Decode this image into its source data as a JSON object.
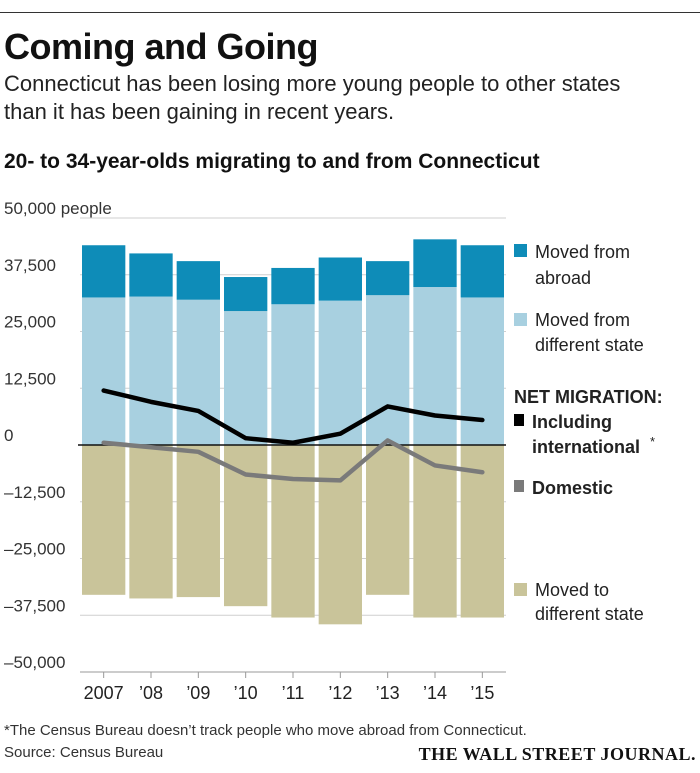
{
  "header": {
    "title": "Coming and Going",
    "subtitle_line1": "Connecticut has been losing more young people to other states",
    "subtitle_line2": "than it has been gaining in recent years."
  },
  "chart_data": {
    "type": "bar",
    "title": "20- to 34-year-olds migrating to and from Connecticut",
    "ylabel": "people",
    "ylim": [
      -50000,
      50000
    ],
    "y_ticks": [
      50000,
      37500,
      25000,
      12500,
      0,
      -12500,
      -25000,
      -37500,
      -50000
    ],
    "y_tick_labels": [
      "50,000 people",
      "37,500",
      "25,000",
      "12,500",
      "0",
      "–12,500",
      "–25,000",
      "–37,500",
      "–50,000"
    ],
    "categories": [
      "2007",
      "’08",
      "’09",
      "’10",
      "’11",
      "’12",
      "’13",
      "’14",
      "’15"
    ],
    "stacked_series": [
      {
        "name": "Moved from different state",
        "color": "#a8d0e0",
        "values": [
          32500,
          32700,
          32000,
          29500,
          31000,
          31800,
          33000,
          34800,
          32500
        ]
      },
      {
        "name": "Moved from abroad",
        "color": "#0e8cb8",
        "values": [
          11500,
          9500,
          8500,
          7500,
          8000,
          9500,
          7500,
          10500,
          11500
        ]
      }
    ],
    "negative_series": {
      "name": "Moved to different state",
      "color": "#c9c49a",
      "values": [
        -33000,
        -33800,
        -33500,
        -35500,
        -38000,
        -39500,
        -33000,
        -38000,
        -38000
      ]
    },
    "line_series": [
      {
        "name": "Including international",
        "color": "#000000",
        "values": [
          12000,
          9500,
          7500,
          1500,
          500,
          2500,
          8500,
          6500,
          5500
        ]
      },
      {
        "name": "Domestic",
        "color": "#7a7a7a",
        "values": [
          500,
          -500,
          -1500,
          -6500,
          -7500,
          -7800,
          1000,
          -4500,
          -6000
        ]
      }
    ],
    "legend": {
      "abroad_line1": "Moved from",
      "abroad_line2": "abroad",
      "state_line1": "Moved from",
      "state_line2": "different state",
      "net_heading": "NET MIGRATION:",
      "including_line1": "Including",
      "including_line2": "international",
      "asterisk": "*",
      "domestic": "Domestic",
      "to_state_line1": "Moved to",
      "to_state_line2": "different state"
    }
  },
  "footer": {
    "footnote": "*The Census Bureau doesn’t track people who move abroad from Connecticut.",
    "source": "Source: Census Bureau",
    "brand": "THE WALL STREET JOURNAL."
  }
}
